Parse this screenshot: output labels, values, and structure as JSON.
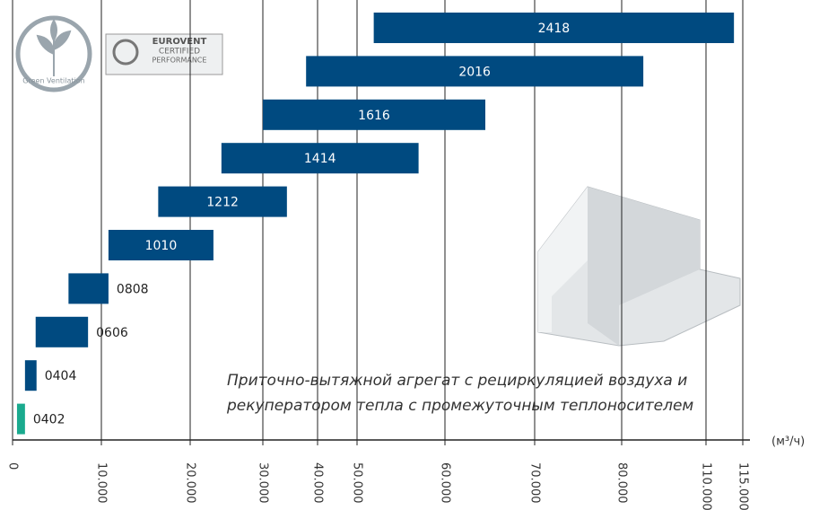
{
  "chart_data": {
    "type": "range_bar",
    "categories": [
      "2418",
      "2016",
      "1616",
      "1414",
      "1212",
      "1010",
      "0808",
      "0606",
      "0404",
      "0402"
    ],
    "starts": [
      51900,
      37900,
      30000,
      24300,
      16400,
      10800,
      6300,
      2600,
      1400,
      500
    ],
    "ends": [
      113800,
      87700,
      64500,
      57000,
      34400,
      23200,
      10800,
      8500,
      2700,
      1400
    ],
    "colors": [
      "#004a80",
      "#004a80",
      "#004a80",
      "#004a80",
      "#004a80",
      "#004a80",
      "#004a80",
      "#004a80",
      "#004a80",
      "#1aaa8e"
    ],
    "xlim": [
      0,
      115000
    ],
    "xticks": [
      0,
      {
        "value": 10000,
        "label": "10.000"
      },
      {
        "value": 20000,
        "label": "20.000"
      },
      {
        "value": 30000,
        "label": "30.000"
      },
      {
        "value": 40000,
        "label": "40.000"
      },
      {
        "value": 50000,
        "label": "50.000"
      },
      {
        "value": 60000,
        "label": "60.000"
      },
      {
        "value": 70000,
        "label": "70.000"
      },
      {
        "value": 80000,
        "label": "80.000"
      },
      {
        "value": 110000,
        "label": "110.000"
      },
      {
        "value": 115000,
        "label": "115.000"
      }
    ],
    "xlabel": "(м³/ч)",
    "grid": true,
    "annotations": [
      "Приточно-вытяжной агрегат с рециркуляцией воздуха и",
      "рекуператором тепла с промежуточным теплоносителем"
    ],
    "logos": {
      "green": "Green Ventilation",
      "eurovent": [
        "EUROVENT",
        "CERTIFIED",
        "PERFORMANCE"
      ]
    }
  }
}
